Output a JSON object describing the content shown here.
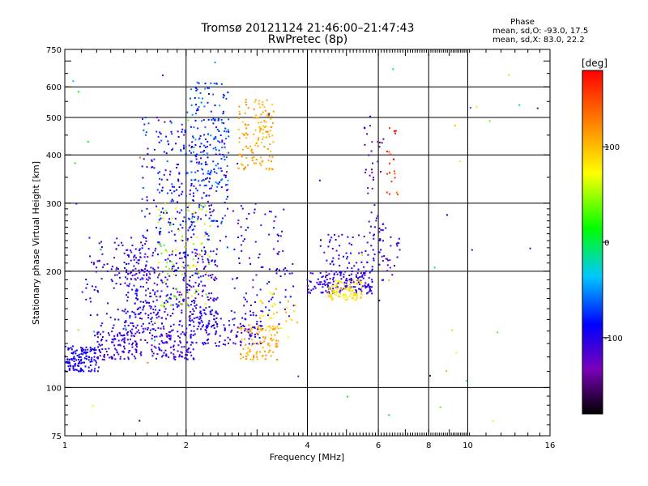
{
  "chart_data": {
    "type": "scatter",
    "title": "Tromsø 20121124 21:46:00–21:47:43",
    "subtitle": "RwPretec (8p)",
    "xlabel": "Frequency [MHz]",
    "ylabel": "Stationary phase Virtual Height [km]",
    "xscale": "log",
    "yscale": "log",
    "xlim": [
      1,
      16
    ],
    "ylim": [
      75,
      750
    ],
    "xticks": [
      1,
      2,
      4,
      6,
      8,
      10,
      16
    ],
    "xtick_labels": [
      "1",
      "2",
      "4",
      "6",
      "8",
      "10",
      "16"
    ],
    "xgrid": [
      2,
      4,
      6,
      8,
      10
    ],
    "yticks": [
      75,
      100,
      200,
      300,
      400,
      500,
      600,
      750
    ],
    "ytick_labels": [
      "75",
      "100",
      "200",
      "300",
      "400",
      "500",
      "600",
      "750"
    ],
    "ygrid": [
      100,
      200,
      300,
      400,
      500,
      600
    ],
    "grid": true,
    "phase_stats": {
      "heading": "Phase",
      "line_o": "mean, sd,O: -93.0, 17.5",
      "line_x": "mean, sd,X: 83.0, 22.2"
    },
    "colorbar": {
      "label": "[deg]",
      "range": [
        -180,
        180
      ],
      "ticks": [
        100,
        0,
        -100
      ],
      "tick_labels": [
        "100",
        "0",
        "-100"
      ],
      "colormap": "rainbow"
    },
    "clusters": [
      {
        "x": [
          1.0,
          1.22
        ],
        "y": [
          110,
          128
        ],
        "phase": -95,
        "spread": 0.035,
        "n": 140
      },
      {
        "x": [
          1.2,
          2.1
        ],
        "y": [
          118,
          140
        ],
        "phase": -110,
        "spread": 0.03,
        "n": 220
      },
      {
        "x": [
          2.05,
          3.1
        ],
        "y": [
          128,
          158
        ],
        "phase": -105,
        "spread": 0.035,
        "n": 130
      },
      {
        "x": [
          1.4,
          2.4
        ],
        "y": [
          140,
          230
        ],
        "phase": -100,
        "spread": 0.09,
        "n": 420
      },
      {
        "x": [
          1.55,
          2.55
        ],
        "y": [
          230,
          500
        ],
        "phase": -90,
        "spread": 0.1,
        "n": 300
      },
      {
        "x": [
          2.0,
          2.55
        ],
        "y": [
          330,
          620
        ],
        "phase": -70,
        "spread": 0.08,
        "n": 130
      },
      {
        "x": [
          1.7,
          2.3
        ],
        "y": [
          160,
          300
        ],
        "phase": 60,
        "spread": 0.12,
        "n": 90
      },
      {
        "x": [
          1.15,
          1.6
        ],
        "y": [
          190,
          245
        ],
        "phase": -110,
        "spread": 0.05,
        "n": 60
      },
      {
        "x": [
          1.1,
          1.5
        ],
        "y": [
          135,
          200
        ],
        "phase": -100,
        "spread": 0.08,
        "n": 50
      },
      {
        "x": [
          2.7,
          3.3
        ],
        "y": [
          365,
          560
        ],
        "phase": 110,
        "spread": 0.06,
        "n": 130
      },
      {
        "x": [
          2.7,
          3.4
        ],
        "y": [
          118,
          145
        ],
        "phase": 110,
        "spread": 0.05,
        "n": 90
      },
      {
        "x": [
          2.6,
          3.7
        ],
        "y": [
          145,
          300
        ],
        "phase": -100,
        "spread": 0.1,
        "n": 100
      },
      {
        "x": [
          3.0,
          3.8
        ],
        "y": [
          135,
          180
        ],
        "phase": 90,
        "spread": 0.08,
        "n": 40
      },
      {
        "x": [
          4.0,
          5.8
        ],
        "y": [
          175,
          200
        ],
        "phase": -105,
        "spread": 0.05,
        "n": 160
      },
      {
        "x": [
          4.5,
          5.5
        ],
        "y": [
          168,
          190
        ],
        "phase": 85,
        "spread": 0.04,
        "n": 90
      },
      {
        "x": [
          4.3,
          5.9
        ],
        "y": [
          200,
          250
        ],
        "phase": -100,
        "spread": 0.08,
        "n": 60
      },
      {
        "x": [
          5.5,
          6.2
        ],
        "y": [
          240,
          480
        ],
        "phase": -125,
        "spread": 0.1,
        "n": 40
      },
      {
        "x": [
          6.0,
          6.8
        ],
        "y": [
          180,
          270
        ],
        "phase": -110,
        "spread": 0.08,
        "n": 35
      },
      {
        "x": [
          6.3,
          6.8
        ],
        "y": [
          310,
          480
        ],
        "phase": 160,
        "spread": 0.08,
        "n": 20
      },
      {
        "x": [
          1.0,
          16.0
        ],
        "y": [
          80,
          700
        ],
        "phase": 0,
        "spread": 0.3,
        "n": 60
      }
    ]
  }
}
